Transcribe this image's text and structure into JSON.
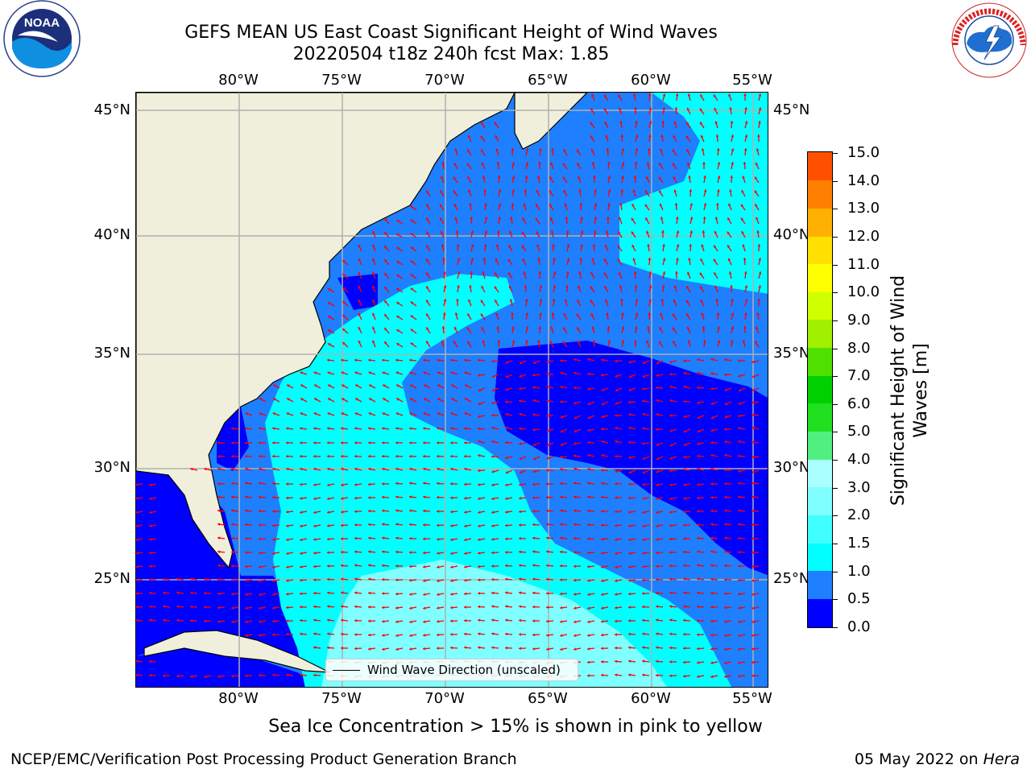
{
  "title": {
    "line1": "GEFS MEAN US East Coast Significant Height of Wind Waves",
    "line2": "20220504 t18z 240h fcst   Max: 1.85"
  },
  "logos": {
    "left": {
      "text": "NOAA",
      "ring_text": "NATIONAL OCEANIC AND ATMOSPHERIC ADMINISTRATION · U.S. DEPARTMENT OF COMMERCE",
      "icon": "noaa-logo"
    },
    "right": {
      "ring_text": "NATIONAL WEATHER SERVICE",
      "icon": "nws-logo"
    }
  },
  "axes": {
    "lon_ticks": [
      "80°W",
      "75°W",
      "70°W",
      "65°W",
      "60°W",
      "55°W"
    ],
    "lat_ticks": [
      "45°N",
      "40°N",
      "35°N",
      "30°N",
      "25°N"
    ],
    "gridlines": true,
    "lon_range": [
      -85,
      -54
    ],
    "lat_range": [
      20.5,
      45.8
    ]
  },
  "map": {
    "legend_label": "Wind Wave Direction (unscaled)",
    "arrow_color": "#ff0000",
    "land_color": "#efefdc",
    "level_colors": [
      "#0000ff",
      "#1e7fff",
      "#00ffff",
      "#7fffff",
      "#aaffff"
    ]
  },
  "colorbar": {
    "label": "Significant Height of Wind Waves [m]",
    "label_line1": "Significant Height of Wind",
    "label_line2": "Waves [m]",
    "ticks": [
      "15.0",
      "14.0",
      "13.0",
      "12.0",
      "11.0",
      "10.0",
      "9.0",
      "8.0",
      "7.0",
      "6.0",
      "5.0",
      "4.0",
      "3.0",
      "2.0",
      "1.5",
      "1.0",
      "0.5",
      "0.0"
    ],
    "colors": [
      "#0000ff",
      "#1e7fff",
      "#00ffff",
      "#40ffff",
      "#7fffff",
      "#aaffff",
      "#50f080",
      "#20e020",
      "#00d000",
      "#50e000",
      "#a0f000",
      "#d0ff00",
      "#ffff00",
      "#ffe000",
      "#ffb000",
      "#ff8000",
      "#ff5000",
      "#ff2000"
    ]
  },
  "caption": "Sea Ice Concentration > 15% is shown in pink to yellow",
  "footer": {
    "left": "NCEP/EMC/Verification Post Processing Product Generation Branch",
    "right_date": "05 May 2022 on ",
    "right_host": "Hera"
  }
}
